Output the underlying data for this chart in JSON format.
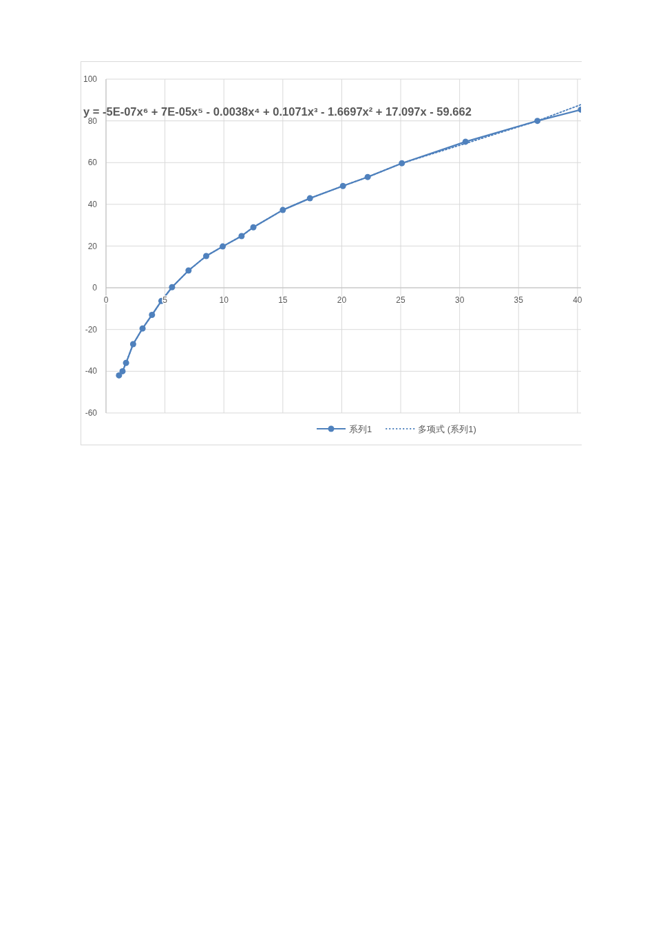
{
  "chart_data": {
    "type": "line",
    "xlim": [
      0,
      40.3
    ],
    "ylim": [
      -60,
      100
    ],
    "xticks": [
      0,
      5,
      10,
      15,
      20,
      25,
      30,
      35,
      40
    ],
    "yticks": [
      -60,
      -40,
      -20,
      0,
      20,
      40,
      60,
      80,
      100
    ],
    "grid": true,
    "legend": "bottom",
    "annotations": [
      "y = -5E-07x⁶ + 7E-05x⁵ - 0.0038x⁴ + 0.1071x³ - 1.6697x² + 17.097x - 59.662"
    ],
    "series": [
      {
        "name": "系列1",
        "color": "#4f81bd",
        "marker": "circle",
        "line_style": "solid",
        "x": [
          1.1,
          1.4,
          1.7,
          2.3,
          3.1,
          3.9,
          4.7,
          5.6,
          7.0,
          8.5,
          9.9,
          11.5,
          12.5,
          15,
          17.3,
          20.1,
          22.2,
          25.1,
          30.5,
          36.6,
          40.3
        ],
        "values": [
          -42,
          -40,
          -36,
          -27,
          -19.5,
          -13,
          -6.3,
          0.3,
          8.3,
          15.2,
          19.8,
          24.8,
          29,
          37.3,
          42.9,
          48.8,
          53.1,
          59.7,
          70,
          80,
          85.4
        ]
      },
      {
        "name": "多项式 (系列1)",
        "color": "#4f81bd",
        "marker": "none",
        "line_style": "dotted",
        "x": [
          1.1,
          1.4,
          1.7,
          2.3,
          3.1,
          3.9,
          4.7,
          5.6,
          7.0,
          8.5,
          9.9,
          11.5,
          12.5,
          15,
          17.3,
          20.1,
          22.2,
          25.1,
          30.5,
          36.6,
          40.3
        ],
        "values": [
          -42,
          -40,
          -36,
          -27,
          -19.5,
          -13,
          -6.3,
          0.3,
          8.3,
          15.2,
          19.8,
          24.8,
          29,
          37.3,
          42.9,
          48.8,
          53.1,
          59.7,
          69.2,
          80,
          87.8
        ]
      }
    ]
  }
}
